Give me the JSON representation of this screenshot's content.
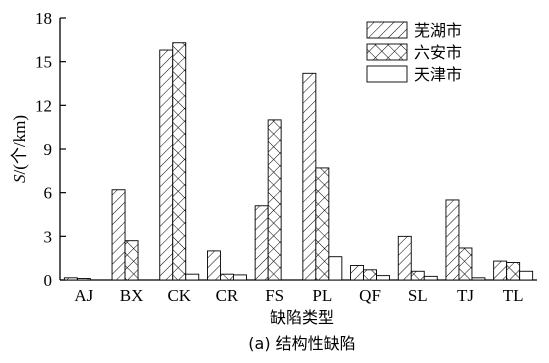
{
  "chart_data": {
    "type": "bar",
    "caption": "(a)  结构性缺陷",
    "xlabel": "缺陷类型",
    "ylabel_italic": "S",
    "ylabel_rest": "/(个/km)",
    "ylim": [
      0,
      18
    ],
    "yticks": [
      "0",
      "3",
      "6",
      "9",
      "12",
      "15",
      "18"
    ],
    "grid": false,
    "legend_position": "top-right",
    "categories": [
      "AJ",
      "BX",
      "CK",
      "CR",
      "FS",
      "PL",
      "QF",
      "SL",
      "TJ",
      "TL"
    ],
    "series": [
      {
        "name": "芜湖市",
        "pattern": "diagonal-hatch",
        "values": [
          0.15,
          6.2,
          15.8,
          2.0,
          5.1,
          14.2,
          1.0,
          3.0,
          5.5,
          1.3
        ]
      },
      {
        "name": "六安市",
        "pattern": "crosshatch",
        "values": [
          0.1,
          2.7,
          16.3,
          0.4,
          11.0,
          7.7,
          0.7,
          0.6,
          2.2,
          1.2
        ]
      },
      {
        "name": "天津市",
        "pattern": "blank",
        "values": [
          0,
          0,
          0.4,
          0.35,
          0,
          1.6,
          0.3,
          0.25,
          0.15,
          0.6
        ]
      }
    ]
  }
}
